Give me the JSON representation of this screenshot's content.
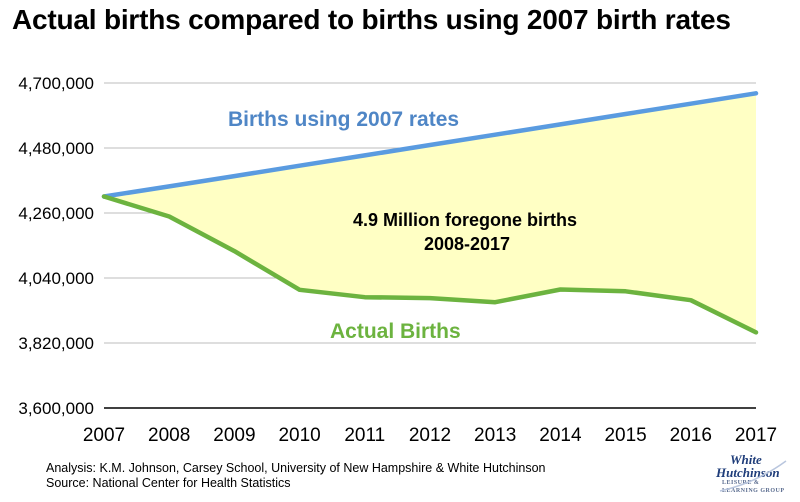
{
  "chart_data": {
    "type": "area",
    "title": "Actual births compared to births using 2007 birth rates",
    "x": [
      "2007",
      "2008",
      "2009",
      "2010",
      "2011",
      "2012",
      "2013",
      "2014",
      "2015",
      "2016",
      "2017"
    ],
    "ylim": [
      3600000,
      4700000
    ],
    "yticks": [
      3600000,
      3820000,
      4040000,
      4260000,
      4480000,
      4700000
    ],
    "ytick_labels": [
      "3,600,000",
      "3,820,000",
      "4,040,000",
      "4,260,000",
      "4,480,000",
      "4,700,000"
    ],
    "grid": true,
    "series": [
      {
        "name": "Births using 2007 rates",
        "color": "#5a9be0",
        "values": [
          4316000,
          4350000,
          4385000,
          4420000,
          4455000,
          4490000,
          4525000,
          4560000,
          4595000,
          4630000,
          4665000
        ]
      },
      {
        "name": "Actual Births",
        "color": "#6cb33f",
        "values": [
          4316000,
          4248000,
          4131000,
          4000000,
          3975000,
          3972000,
          3958000,
          4001000,
          3995000,
          3965000,
          3856000
        ]
      }
    ],
    "fill_between_color": "#ffffc4",
    "annotation": [
      "4.9 Million foregone births",
      "2008-2017"
    ]
  },
  "footer": {
    "analysis": "Analysis: K.M. Johnson, Carsey School, University of New Hampshire & White Hutchinson",
    "source": "Source: National Center for Health Statistics"
  },
  "logo": {
    "line1": "White",
    "line2": "Hutchinson",
    "tagline": "LEISURE & LEARNING GROUP"
  }
}
